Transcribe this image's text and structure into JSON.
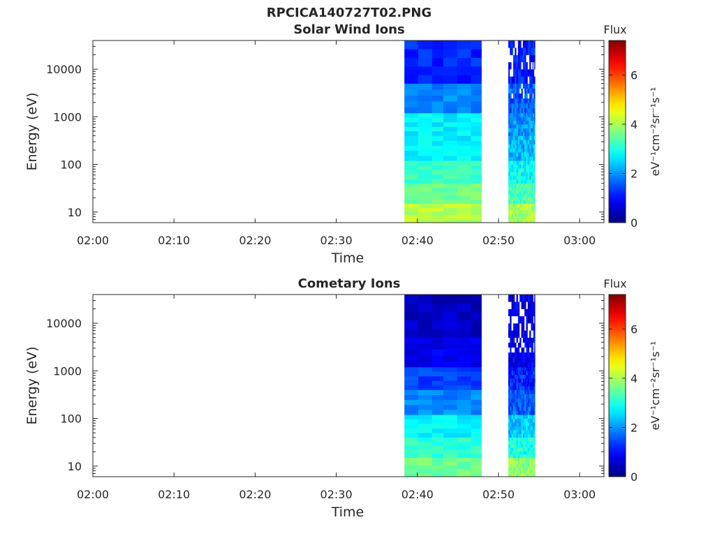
{
  "figure_title": "RPCICA140727T02.PNG",
  "colormap": "jet",
  "missing_color": "#ffffff",
  "chart_data": [
    {
      "type": "heatmap",
      "title": "Solar Wind Ions",
      "xlabel": "Time",
      "ylabel": "Energy (eV)",
      "yscale": "log",
      "xlim": [
        "02:00",
        "03:03"
      ],
      "ylim": [
        6,
        40000
      ],
      "x_ticks": [
        "02:00",
        "02:10",
        "02:20",
        "02:30",
        "02:40",
        "02:50",
        "03:00"
      ],
      "y_ticks": [
        "10",
        "100",
        "1000",
        "10000"
      ],
      "colorbar": {
        "label": "Flux",
        "units": "eV⁻¹cm⁻²sr⁻¹s⁻¹",
        "range": [
          0,
          7.4
        ],
        "ticks": [
          "0",
          "2",
          "4",
          "6"
        ]
      },
      "data_blocks": [
        {
          "start": "02:38.4",
          "end": "02:47.9",
          "columns": [
            "02:38.4",
            "02:40.1",
            "02:41.8",
            "02:43.2",
            "02:44.9",
            "02:46.6"
          ],
          "energy_flux_profile": [
            {
              "energy_min": 6,
              "energy_max": 15,
              "flux": 4.1
            },
            {
              "energy_min": 15,
              "energy_max": 40,
              "flux": 3.6
            },
            {
              "energy_min": 40,
              "energy_max": 120,
              "flux": 3.2
            },
            {
              "energy_min": 120,
              "energy_max": 400,
              "flux": 2.7
            },
            {
              "energy_min": 400,
              "energy_max": 1200,
              "flux": 2.7
            },
            {
              "energy_min": 1200,
              "energy_max": 5000,
              "flux": 1.9
            },
            {
              "energy_min": 5000,
              "energy_max": 40000,
              "flux": 1.2
            }
          ]
        },
        {
          "start": "02:51.2",
          "end": "02:54.5",
          "columns": [
            "02:51.2",
            "02:51.8",
            "02:52.4",
            "02:53.0",
            "02:53.6",
            "02:54.2"
          ],
          "energy_flux_profile": [
            {
              "energy_min": 6,
              "energy_max": 15,
              "flux": 4.0
            },
            {
              "energy_min": 15,
              "energy_max": 40,
              "flux": 3.3
            },
            {
              "energy_min": 40,
              "energy_max": 120,
              "flux": 2.8
            },
            {
              "energy_min": 120,
              "energy_max": 400,
              "flux": 2.3
            },
            {
              "energy_min": 400,
              "energy_max": 1200,
              "flux": 2.0
            },
            {
              "energy_min": 1200,
              "energy_max": 5000,
              "flux": 1.6
            },
            {
              "energy_min": 5000,
              "energy_max": 40000,
              "flux": 1.1
            }
          ]
        }
      ]
    },
    {
      "type": "heatmap",
      "title": "Cometary Ions",
      "xlabel": "Time",
      "ylabel": "Energy (eV)",
      "yscale": "log",
      "xlim": [
        "02:00",
        "03:03"
      ],
      "ylim": [
        6,
        40000
      ],
      "x_ticks": [
        "02:00",
        "02:10",
        "02:20",
        "02:30",
        "02:40",
        "02:50",
        "03:00"
      ],
      "y_ticks": [
        "10",
        "100",
        "1000",
        "10000"
      ],
      "colorbar": {
        "label": "Flux",
        "units": "eV⁻¹cm⁻²sr⁻¹s⁻¹",
        "range": [
          0,
          7.4
        ],
        "ticks": [
          "0",
          "2",
          "4",
          "6"
        ]
      },
      "data_blocks": [
        {
          "start": "02:38.4",
          "end": "02:47.9",
          "columns": [
            "02:38.4",
            "02:40.1",
            "02:41.8",
            "02:43.2",
            "02:44.9",
            "02:46.6"
          ],
          "energy_flux_profile": [
            {
              "energy_min": 6,
              "energy_max": 15,
              "flux": 3.6
            },
            {
              "energy_min": 15,
              "energy_max": 40,
              "flux": 3.1
            },
            {
              "energy_min": 40,
              "energy_max": 120,
              "flux": 2.7
            },
            {
              "energy_min": 120,
              "energy_max": 400,
              "flux": 1.9
            },
            {
              "energy_min": 400,
              "energy_max": 1200,
              "flux": 1.4
            },
            {
              "energy_min": 1200,
              "energy_max": 5000,
              "flux": 0.8
            },
            {
              "energy_min": 5000,
              "energy_max": 40000,
              "flux": 0.5
            }
          ]
        },
        {
          "start": "02:51.2",
          "end": "02:54.5",
          "columns": [
            "02:51.2",
            "02:51.8",
            "02:52.4",
            "02:53.0",
            "02:53.6",
            "02:54.2"
          ],
          "energy_flux_profile": [
            {
              "energy_min": 6,
              "energy_max": 15,
              "flux": 3.8
            },
            {
              "energy_min": 15,
              "energy_max": 40,
              "flux": 3.0
            },
            {
              "energy_min": 40,
              "energy_max": 120,
              "flux": 2.4
            },
            {
              "energy_min": 120,
              "energy_max": 400,
              "flux": 1.6
            },
            {
              "energy_min": 400,
              "energy_max": 1200,
              "flux": 1.2
            },
            {
              "energy_min": 1200,
              "energy_max": 5000,
              "flux": 0.8
            },
            {
              "energy_min": 5000,
              "energy_max": 40000,
              "flux": 0.7
            }
          ]
        }
      ]
    }
  ]
}
